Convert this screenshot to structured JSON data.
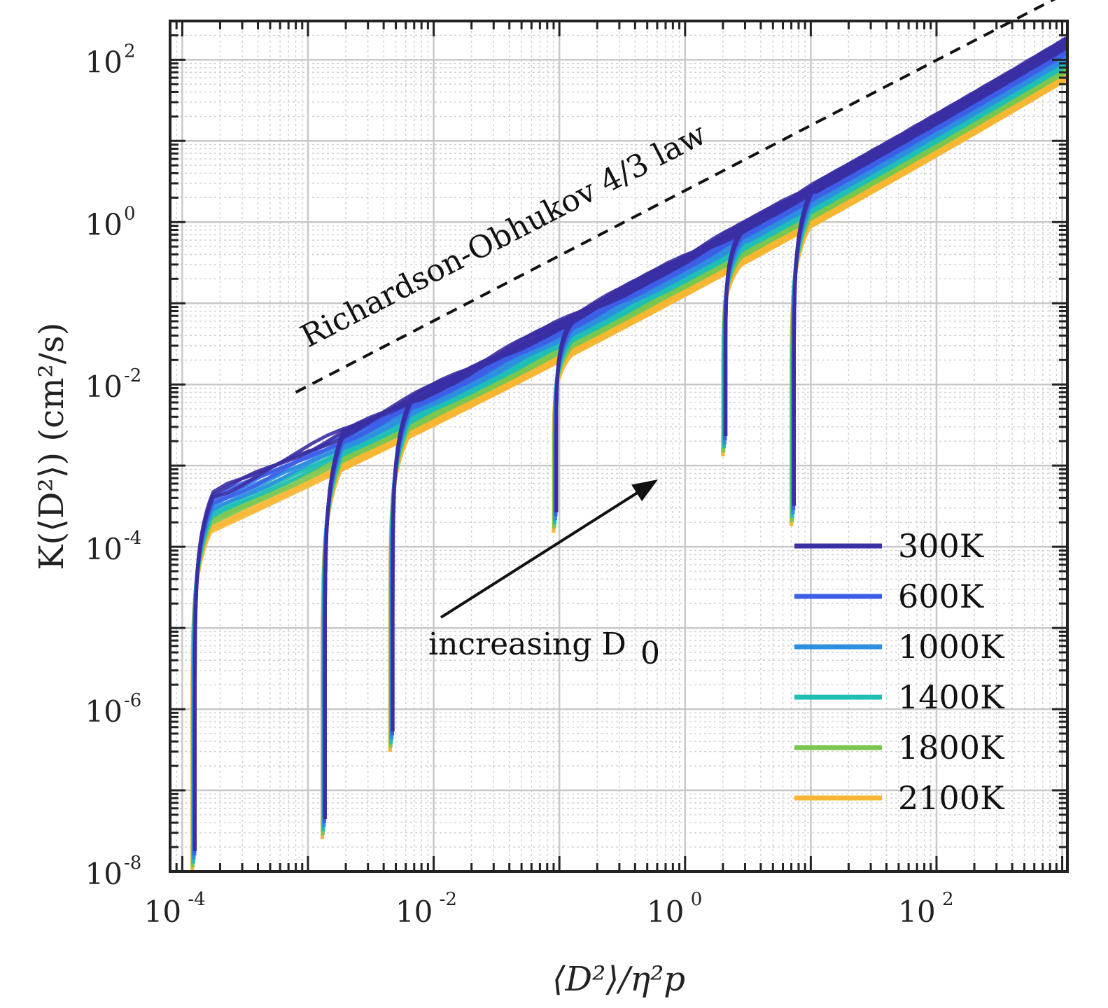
{
  "chart_data": {
    "type": "line",
    "scale": {
      "x": "log",
      "y": "log"
    },
    "xlim": [
      8e-05,
      1100
    ],
    "ylim": [
      1e-08,
      300
    ],
    "xlabel": "⟨D²⟩/η²p",
    "ylabel": "K(⟨D²⟩) (cm²/s)",
    "x_ticks": [
      {
        "value": 0.0001,
        "base": "10",
        "exp": "-4"
      },
      {
        "value": 0.01,
        "base": "10",
        "exp": "-2"
      },
      {
        "value": 1,
        "base": "10",
        "exp": "0"
      },
      {
        "value": 100,
        "base": "10",
        "exp": "2"
      }
    ],
    "y_ticks": [
      {
        "value": 1e-08,
        "base": "10",
        "exp": "-8"
      },
      {
        "value": 1e-06,
        "base": "10",
        "exp": "-6"
      },
      {
        "value": 0.0001,
        "base": "10",
        "exp": "-4"
      },
      {
        "value": 0.01,
        "base": "10",
        "exp": "-2"
      },
      {
        "value": 1,
        "base": "10",
        "exp": "0"
      },
      {
        "value": 100,
        "base": "10",
        "exp": "2"
      }
    ],
    "grid": true,
    "legend_position": "bottom-right",
    "series": [
      {
        "name": "300K",
        "color": "#3a2fa3",
        "offset": 0.0
      },
      {
        "name": "600K",
        "color": "#3d5fe8",
        "offset": -0.08
      },
      {
        "name": "1000K",
        "color": "#2e8fe0",
        "offset": -0.16
      },
      {
        "name": "1400K",
        "color": "#1fbfb5",
        "offset": -0.24
      },
      {
        "name": "1800K",
        "color": "#7ac64f",
        "offset": -0.32
      },
      {
        "name": "2100K",
        "color": "#f7b733",
        "offset": -0.42
      }
    ],
    "initial_separations": [
      {
        "x0": 0.00012,
        "y_join": 0.0002,
        "y_min": 1e-08
      },
      {
        "x0": 0.0013,
        "y_join": 0.0004,
        "y_min": 2.5e-08
      },
      {
        "x0": 0.0045,
        "y_join": 0.003,
        "y_min": 3e-07
      },
      {
        "x0": 0.09,
        "y_join": 0.06,
        "y_min": 0.00015
      },
      {
        "x0": 2.0,
        "y_join": 1.2,
        "y_min": 0.0013
      },
      {
        "x0": 7.0,
        "y_join": 4.0,
        "y_min": 0.00018
      }
    ],
    "reference_line": {
      "label": "Richardson-Obhukov 4/3 law",
      "slope": 1.3333,
      "x_start": 0.0008,
      "y_start": 0.008,
      "x_end": 1000,
      "style": "dashed"
    },
    "arrow_annotation": {
      "label": "increasing D",
      "subscript": "0",
      "x_from": 0.018,
      "y_from": 4e-05,
      "x_to": 0.7,
      "y_to": 0.0008
    }
  }
}
